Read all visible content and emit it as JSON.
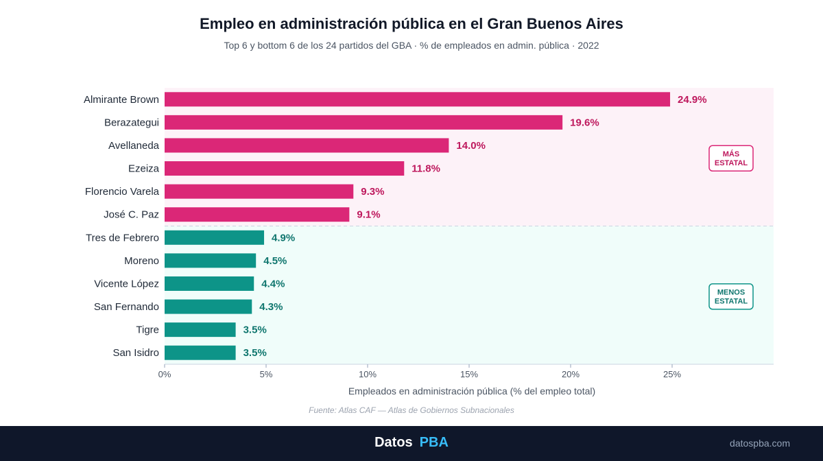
{
  "header": {
    "title": "Empleo en administración pública en el Gran Buenos Aires",
    "subtitle": "Top 6 y bottom 6 de los 24 partidos del GBA · % de empleados en admin. pública · 2022"
  },
  "chart_data": {
    "type": "bar",
    "orientation": "horizontal",
    "categories": [
      "Almirante Brown",
      "Berazategui",
      "Avellaneda",
      "Ezeiza",
      "Florencio Varela",
      "José C. Paz",
      "Tres de Febrero",
      "Moreno",
      "Vicente López",
      "San Fernando",
      "Tigre",
      "San Isidro"
    ],
    "values": [
      24.9,
      19.6,
      14.0,
      11.8,
      9.3,
      9.1,
      4.9,
      4.5,
      4.4,
      4.3,
      3.5,
      3.5
    ],
    "value_labels": [
      "24.9%",
      "19.6%",
      "14.0%",
      "11.8%",
      "9.3%",
      "9.1%",
      "4.9%",
      "4.5%",
      "4.4%",
      "4.3%",
      "3.5%",
      "3.5%"
    ],
    "groups": [
      {
        "label": "MÁS\nESTATAL",
        "count": 6,
        "bar_color": "#db2777",
        "label_color": "#be185d",
        "band_color": "#fdf2f8"
      },
      {
        "label": "MENOS\nESTATAL",
        "count": 6,
        "bar_color": "#0d9488",
        "label_color": "#0f766e",
        "band_color": "#f0fdfa"
      }
    ],
    "xlim": [
      0,
      30
    ],
    "x_ticks": [
      0,
      5,
      10,
      15,
      20,
      25
    ],
    "x_tick_labels": [
      "0%",
      "5%",
      "10%",
      "15%",
      "20%",
      "25%"
    ],
    "xlabel": "Empleados en administración pública (% del empleo total)",
    "ylabel": "",
    "grid": false
  },
  "footer": {
    "source": "Fuente: Atlas CAF — Atlas de Gobiernos Subnacionales",
    "brand_part1": "Datos",
    "brand_part2": "PBA",
    "website": "datospba.com"
  }
}
